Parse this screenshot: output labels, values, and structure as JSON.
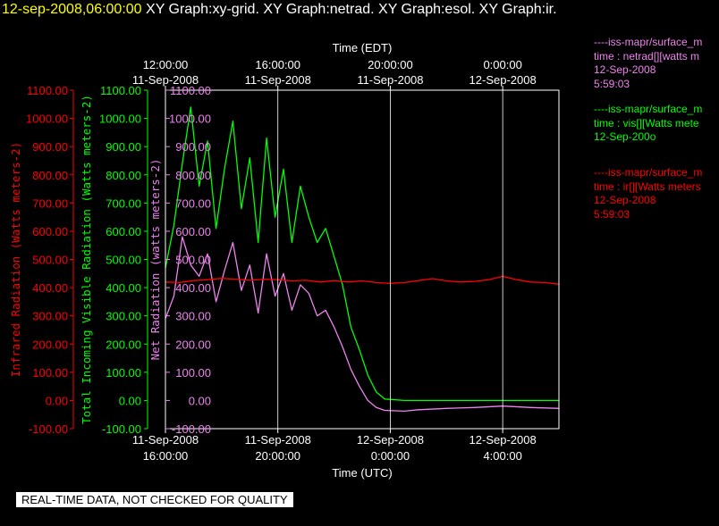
{
  "header": {
    "timestamp": "12-sep-2008,06:00:00",
    "graphs": "XY Graph:xy-grid.  XY Graph:netrad.  XY Graph:esol.  XY Graph:ir."
  },
  "banner": "REAL-TIME DATA, NOT CHECKED FOR QUALITY",
  "legend": [
    {
      "lines": [
        "----iss-mapr/surface_m",
        "time : netrad[][watts m",
        "12-Sep-2008",
        "5:59:03"
      ],
      "color": "#ee82ee"
    },
    {
      "lines": [
        "----iss-mapr/surface_m",
        "time : vis[][Watts mete",
        "12-Sep-200o"
      ],
      "color": "#00ff00"
    },
    {
      "lines": [
        "----iss-mapr/surface_m",
        "time : ir[][Watts meters",
        "12-Sep-2008",
        "5:59:03"
      ],
      "color": "#ff0000"
    }
  ],
  "chart_data": {
    "type": "line",
    "xlabel_bottom": "Time (UTC)",
    "xlabel_top": "Time (EDT)",
    "x_ticks_bottom": [
      {
        "x": 16,
        "label": [
          "11-Sep-2008",
          "16:00:00"
        ]
      },
      {
        "x": 20,
        "label": [
          "11-Sep-2008",
          "20:00:00"
        ]
      },
      {
        "x": 24,
        "label": [
          "12-Sep-2008",
          "0:00:00"
        ]
      },
      {
        "x": 28,
        "label": [
          "12-Sep-2008",
          "4:00:00"
        ]
      }
    ],
    "x_ticks_top": [
      {
        "x": 16,
        "label": [
          "12:00:00",
          "11-Sep-2008"
        ]
      },
      {
        "x": 20,
        "label": [
          "16:00:00",
          "11-Sep-2008"
        ]
      },
      {
        "x": 24,
        "label": [
          "20:00:00",
          "11-Sep-2008"
        ]
      },
      {
        "x": 28,
        "label": [
          "0:00:00",
          "12-Sep-2008"
        ]
      }
    ],
    "xlim": [
      16,
      30
    ],
    "ylim": [
      -100,
      1100
    ],
    "y_ticks": [
      -100,
      0,
      100,
      200,
      300,
      400,
      500,
      600,
      700,
      800,
      900,
      1000,
      1100
    ],
    "y_axes": [
      {
        "label": "Infrared Radiation (Watts meters-2)",
        "color": "#ff0000"
      },
      {
        "label": "Total Incoming Visible Radiation (Watts meters-2)",
        "color": "#00ff00"
      },
      {
        "label": "Net Radiation (watts meters-2)",
        "color": "#ee82ee"
      }
    ],
    "series": [
      {
        "color": "#00ff00",
        "x": [
          16,
          16.3,
          16.6,
          16.9,
          17.2,
          17.5,
          17.8,
          18.1,
          18.4,
          18.7,
          19.0,
          19.3,
          19.6,
          19.9,
          20.2,
          20.5,
          20.8,
          21.1,
          21.4,
          21.7,
          22.0,
          22.3,
          22.6,
          22.9,
          23.2,
          23.5,
          23.8,
          24.5,
          25,
          26,
          27,
          28,
          29,
          30
        ],
        "y": [
          470,
          620,
          840,
          1040,
          760,
          920,
          610,
          820,
          990,
          680,
          860,
          560,
          930,
          650,
          820,
          560,
          760,
          650,
          560,
          610,
          510,
          410,
          260,
          180,
          90,
          30,
          5,
          0,
          0,
          0,
          0,
          0,
          0,
          0
        ]
      },
      {
        "color": "#ee82ee",
        "x": [
          16,
          16.3,
          16.6,
          16.9,
          17.2,
          17.5,
          17.8,
          18.1,
          18.4,
          18.7,
          19.0,
          19.3,
          19.6,
          19.9,
          20.2,
          20.5,
          20.8,
          21.1,
          21.4,
          21.7,
          22.0,
          22.3,
          22.6,
          22.9,
          23.2,
          23.5,
          23.8,
          24.5,
          25,
          26,
          27,
          28,
          29,
          30
        ],
        "y": [
          290,
          370,
          580,
          480,
          440,
          520,
          350,
          460,
          560,
          390,
          480,
          310,
          520,
          370,
          450,
          320,
          410,
          380,
          300,
          320,
          260,
          190,
          110,
          50,
          0,
          -25,
          -35,
          -38,
          -33,
          -28,
          -25,
          -20,
          -25,
          -28
        ]
      },
      {
        "color": "#ff0000",
        "x": [
          16,
          16.5,
          17,
          17.5,
          18,
          18.5,
          19,
          19.5,
          20,
          20.5,
          21,
          21.5,
          22,
          22.5,
          23,
          23.5,
          24,
          24.5,
          25,
          25.5,
          26,
          26.5,
          27,
          27.5,
          28,
          28.5,
          29,
          29.5,
          30
        ],
        "y": [
          420,
          418,
          425,
          428,
          433,
          430,
          426,
          430,
          428,
          424,
          426,
          420,
          425,
          420,
          424,
          418,
          415,
          418,
          425,
          432,
          424,
          420,
          422,
          428,
          440,
          428,
          420,
          418,
          412
        ]
      }
    ]
  }
}
